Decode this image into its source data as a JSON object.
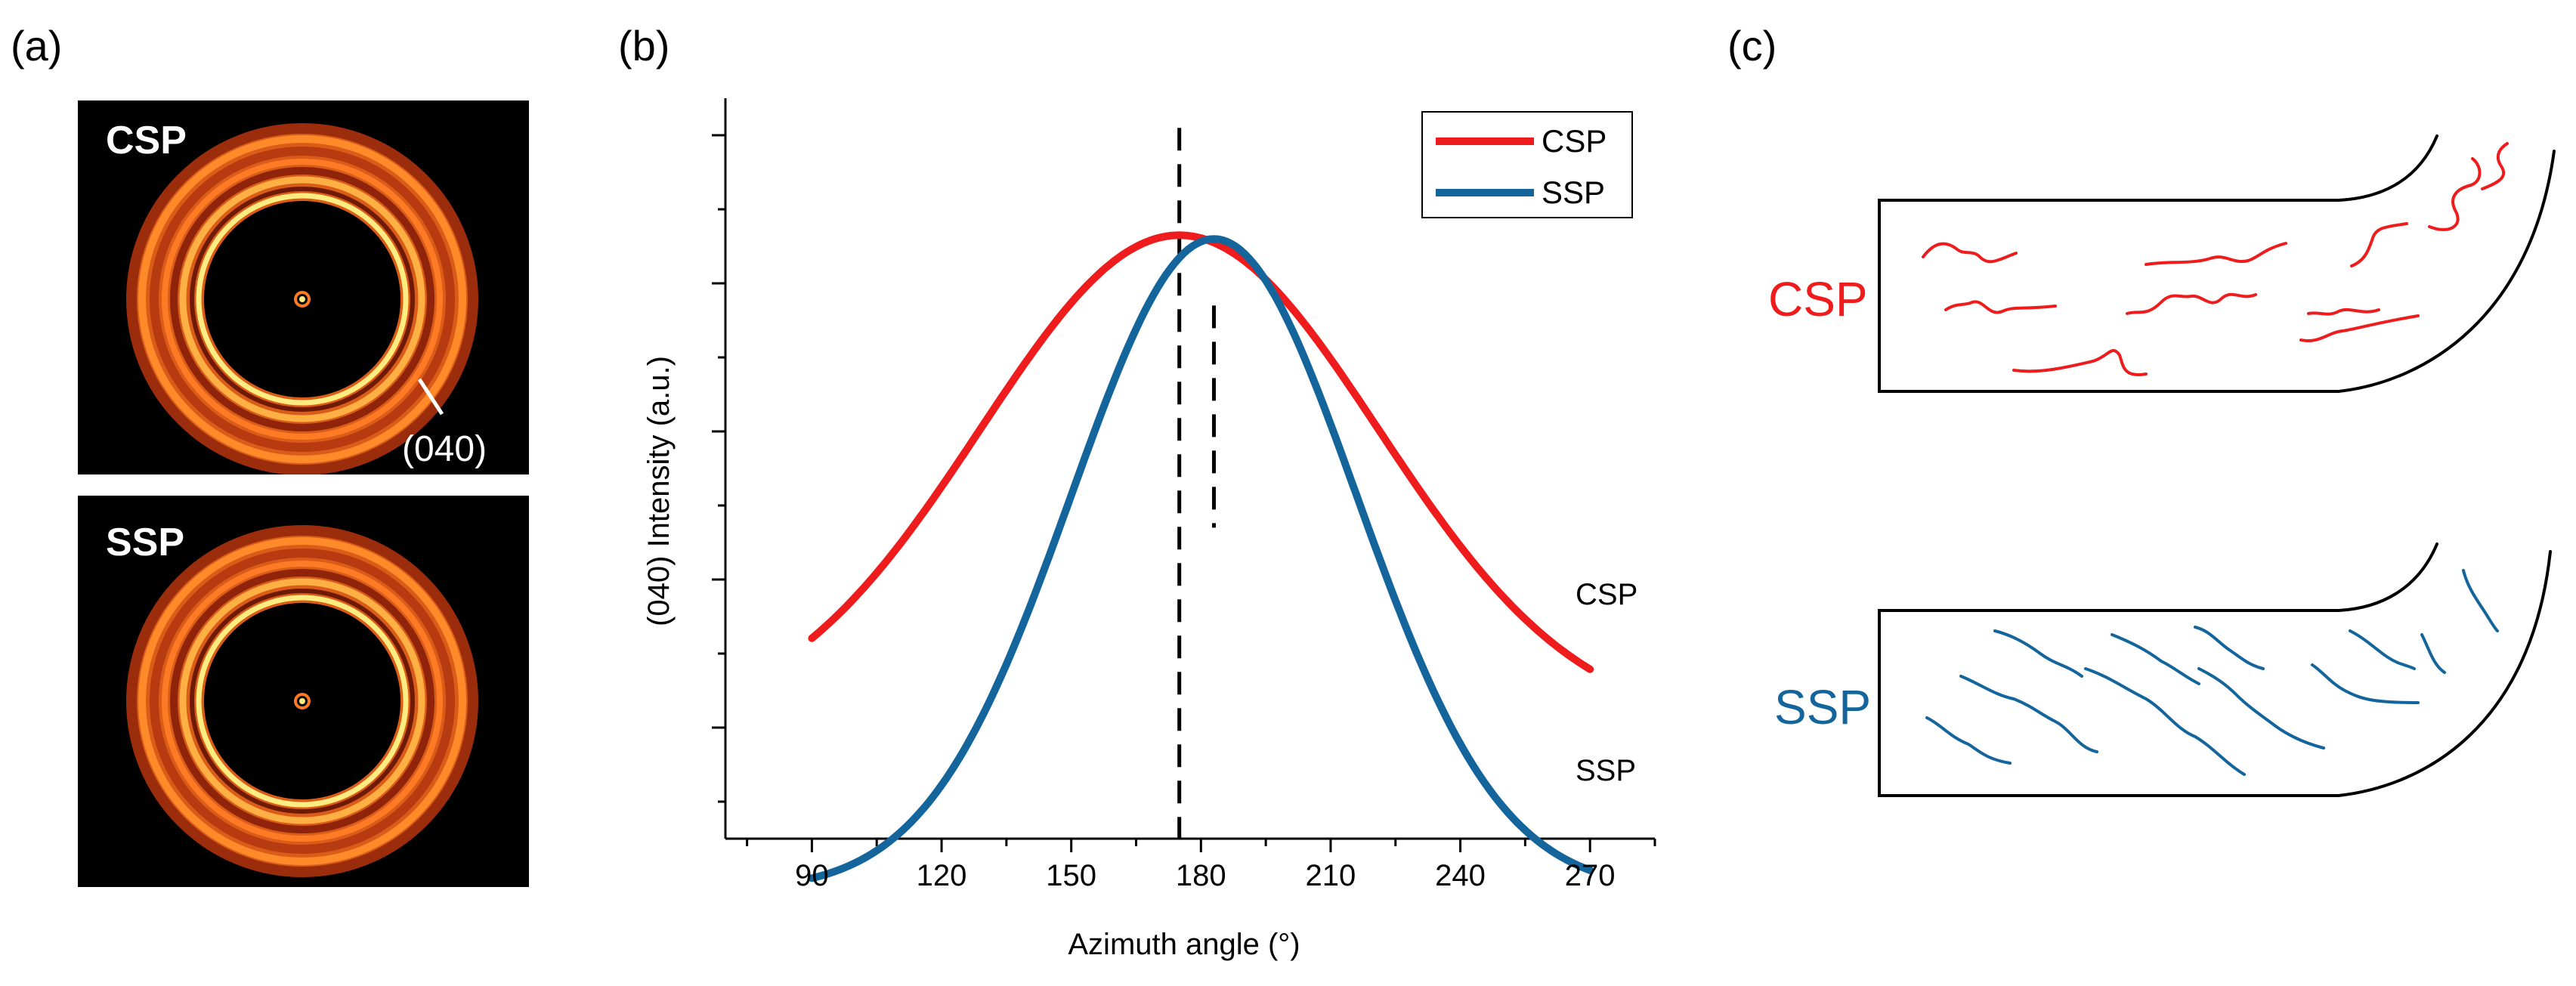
{
  "colors": {
    "csp": "#ee1c1c",
    "ssp": "#13659c",
    "axis": "#000000",
    "waxs_bg": "#000000",
    "ring": "#ff6d1d",
    "ring_bright": "#ffec80"
  },
  "panel_a": {
    "label": "(a)",
    "top_tag": "CSP",
    "bottom_tag": "SSP",
    "peak_label": "(040)"
  },
  "panel_b": {
    "label": "(b)"
  },
  "panel_c": {
    "label": "(c)",
    "csp_label": "CSP",
    "ssp_label": "SSP"
  },
  "chart_data": {
    "type": "line",
    "title": "",
    "xlabel": "Azimuth angle (°)",
    "ylabel": "(040) Intensity (a.u.)",
    "xlim": [
      70,
      285
    ],
    "ylim": [
      0,
      1
    ],
    "x_ticks": [
      90,
      120,
      150,
      180,
      210,
      240,
      270
    ],
    "y_ticks_labeled": false,
    "legend_position": "top-right",
    "series": [
      {
        "name": "CSP",
        "peak_x": 175,
        "base": 0.15,
        "amplitude": 0.665,
        "sigma": 46,
        "x_start": 90,
        "x_end": 270,
        "end_label": "CSP"
      },
      {
        "name": "SSP",
        "peak_x": 183,
        "base": -0.07,
        "amplitude": 0.88,
        "sigma": 33,
        "x_start": 90,
        "x_end": 270,
        "end_label": "SSP"
      }
    ],
    "reference_lines": [
      {
        "name": "CSP peak",
        "x": 175,
        "y_from": 0.0,
        "y_to": 0.96
      },
      {
        "name": "SSP peak",
        "x": 183,
        "y_from": 0.42,
        "y_to": 0.72
      }
    ]
  }
}
